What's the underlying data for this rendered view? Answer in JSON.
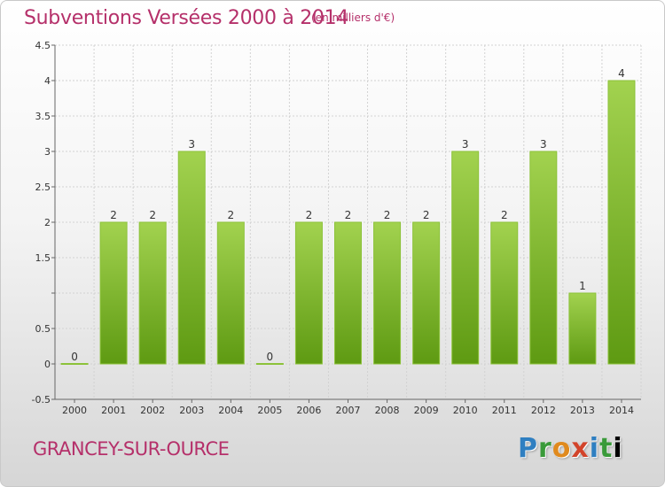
{
  "header": {
    "title": "Subventions Versées 2000 à 2014",
    "unit": "(en milliers d'€)"
  },
  "footer": {
    "commune": "GRANCEY-SUR-OURCE",
    "logo_letters": [
      "P",
      "r",
      "o",
      "x",
      "i",
      "t",
      "i"
    ]
  },
  "colors": {
    "bar_light": "#a2d24f",
    "bar_dark": "#5e9a12",
    "title": "#b5306a"
  },
  "chart_data": {
    "type": "bar",
    "title": "Subventions Versées 2000 à 2014",
    "subtitle": "(en milliers d'€)",
    "xlabel": "",
    "ylabel": "",
    "categories": [
      "2000",
      "2001",
      "2002",
      "2003",
      "2004",
      "2005",
      "2006",
      "2007",
      "2008",
      "2009",
      "2010",
      "2011",
      "2012",
      "2013",
      "2014"
    ],
    "values": [
      0,
      2,
      2,
      3,
      2,
      0,
      2,
      2,
      2,
      2,
      3,
      2,
      3,
      1,
      4
    ],
    "data_labels": [
      "0",
      "2",
      "2",
      "3",
      "2",
      "0",
      "2",
      "2",
      "2",
      "2",
      "3",
      "2",
      "3",
      "1",
      "4"
    ],
    "ylim": [
      -0.5,
      4.5
    ],
    "yticks": [
      -0.5,
      0,
      0.5,
      1,
      1.5,
      2,
      2.5,
      3,
      3.5,
      4,
      4.5
    ],
    "ytick_labels": [
      "-0.5",
      "0",
      "0.5",
      "",
      "1.5",
      "2",
      "2.5",
      "3",
      "3.5",
      "4",
      "4.5"
    ],
    "grid": true,
    "legend": "none"
  }
}
